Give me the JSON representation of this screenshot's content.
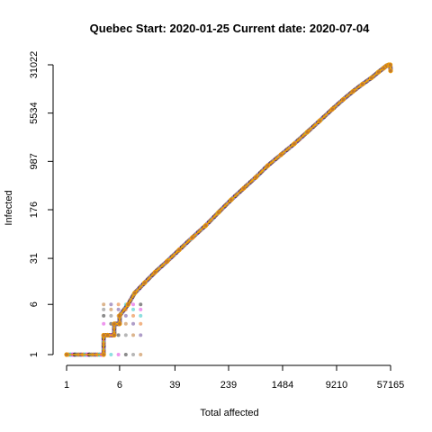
{
  "chart_data": {
    "type": "scatter",
    "title": "Quebec Start:  2020-01-25   Current date:  2020-07-04",
    "xlabel": "Total affected",
    "ylabel": "Infected",
    "scale": "log",
    "x_ticks": [
      "1",
      "6",
      "39",
      "239",
      "1484",
      "9210",
      "57165"
    ],
    "y_ticks": [
      "1",
      "6",
      "31",
      "176",
      "987",
      "5534",
      "31022"
    ],
    "xlim": [
      1,
      57165
    ],
    "ylim": [
      1,
      31022
    ],
    "grid": false,
    "legend": "none",
    "colors": {
      "main_line": "#f5a300",
      "point_palette": [
        "#6b4c9a",
        "#e87722",
        "#2ec4c4",
        "#e040e0",
        "#2a2a2a",
        "#7a7a7a",
        "#c07830"
      ]
    },
    "series": [
      {
        "values_x": [
          1,
          3.5,
          3.5,
          4,
          4,
          5,
          5,
          6,
          6,
          8,
          10,
          14,
          20,
          30,
          45,
          70,
          110,
          170,
          260,
          400,
          600,
          900,
          1400,
          2200,
          3400,
          5200,
          8000,
          11500,
          16000,
          22000,
          30000,
          38000,
          45000,
          50000,
          54000,
          56500,
          57165
        ],
        "values_y": [
          1,
          1,
          2,
          2,
          2,
          2,
          3,
          3,
          4,
          6,
          9,
          13,
          19,
          28,
          42,
          65,
          100,
          160,
          250,
          380,
          560,
          850,
          1250,
          1850,
          2800,
          4200,
          6400,
          9000,
          12000,
          15500,
          19500,
          24000,
          27500,
          30000,
          31022,
          31000,
          25000
        ]
      }
    ]
  }
}
